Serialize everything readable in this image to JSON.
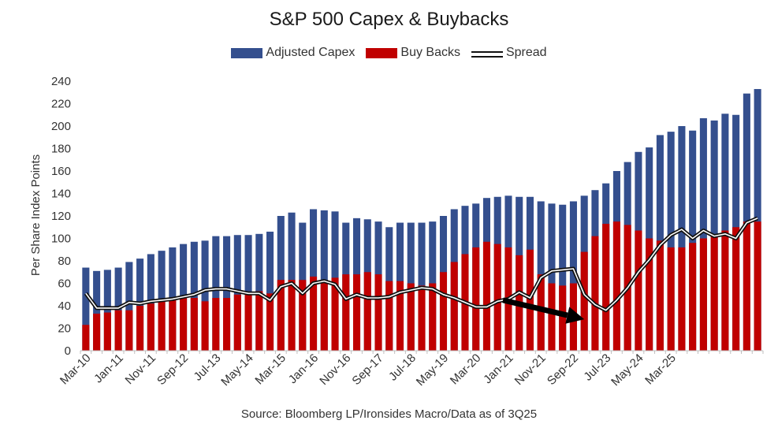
{
  "colors": {
    "capex": "#344f8e",
    "buybacks": "#c00000",
    "spread": "#111111",
    "axis": "#bfbfbf"
  },
  "chart_data": {
    "type": "bar",
    "title": "S&P 500 Capex & Buybacks",
    "ylabel": "Per Share Index Points",
    "xlabel": "",
    "ylim": [
      0,
      240
    ],
    "yticks": [
      0,
      20,
      40,
      60,
      80,
      100,
      120,
      140,
      160,
      180,
      200,
      220,
      240
    ],
    "x_tick_labels": [
      "Mar-10",
      "Jan-11",
      "Nov-11",
      "Sep-12",
      "Jul-13",
      "May-14",
      "Mar-15",
      "Jan-16",
      "Nov-16",
      "Sep-17",
      "Jul-18",
      "May-19",
      "Mar-20",
      "Jan-21",
      "Nov-21",
      "Sep-22",
      "Jul-23",
      "May-24",
      "Mar-25"
    ],
    "quarters_start": "Q1 2010",
    "legend": [
      "Adjusted Capex",
      "Buy Backs",
      "Spread"
    ],
    "legend_position": "top-center",
    "series": [
      {
        "name": "Adjusted Capex",
        "kind": "bar",
        "values": [
          74,
          71,
          72,
          74,
          79,
          82,
          86,
          89,
          92,
          95,
          97,
          98,
          102,
          102,
          103,
          103,
          104,
          106,
          120,
          123,
          114,
          126,
          125,
          124,
          114,
          118,
          117,
          115,
          110,
          114,
          114,
          114,
          115,
          120,
          126,
          129,
          131,
          136,
          137,
          138,
          137,
          137,
          133,
          131,
          130,
          133,
          138,
          143,
          149,
          160,
          168,
          177,
          181,
          192,
          195,
          200,
          196,
          207,
          205,
          211,
          210,
          229,
          233
        ]
      },
      {
        "name": "Buy Backs",
        "kind": "bar",
        "values": [
          23,
          33,
          34,
          36,
          36,
          40,
          42,
          44,
          46,
          47,
          47,
          44,
          47,
          47,
          50,
          52,
          53,
          51,
          63,
          63,
          63,
          66,
          63,
          65,
          68,
          68,
          70,
          68,
          62,
          62,
          60,
          58,
          60,
          70,
          79,
          86,
          92,
          97,
          95,
          92,
          85,
          90,
          68,
          60,
          58,
          60,
          88,
          102,
          113,
          115,
          112,
          107,
          100,
          98,
          92,
          92,
          96,
          100,
          103,
          107,
          110,
          115,
          115
        ]
      },
      {
        "name": "Spread",
        "kind": "line",
        "values": [
          51,
          38,
          38,
          38,
          43,
          42,
          44,
          45,
          46,
          48,
          50,
          54,
          55,
          55,
          53,
          51,
          51,
          45,
          57,
          60,
          51,
          60,
          62,
          59,
          46,
          50,
          47,
          47,
          48,
          52,
          54,
          56,
          55,
          50,
          47,
          43,
          39,
          39,
          44,
          46,
          52,
          47,
          65,
          71,
          72,
          73,
          50,
          41,
          36,
          45,
          56,
          70,
          81,
          94,
          103,
          108,
          100,
          107,
          102,
          104,
          100,
          114,
          118
        ]
      }
    ],
    "annotations": [
      {
        "type": "arrow",
        "from_quarter": 38.5,
        "from_value": 45,
        "to_quarter": 46,
        "to_value": 28
      }
    ]
  },
  "source_text": "Source: Bloomberg LP/Ironsides Macro/Data as of 3Q25"
}
